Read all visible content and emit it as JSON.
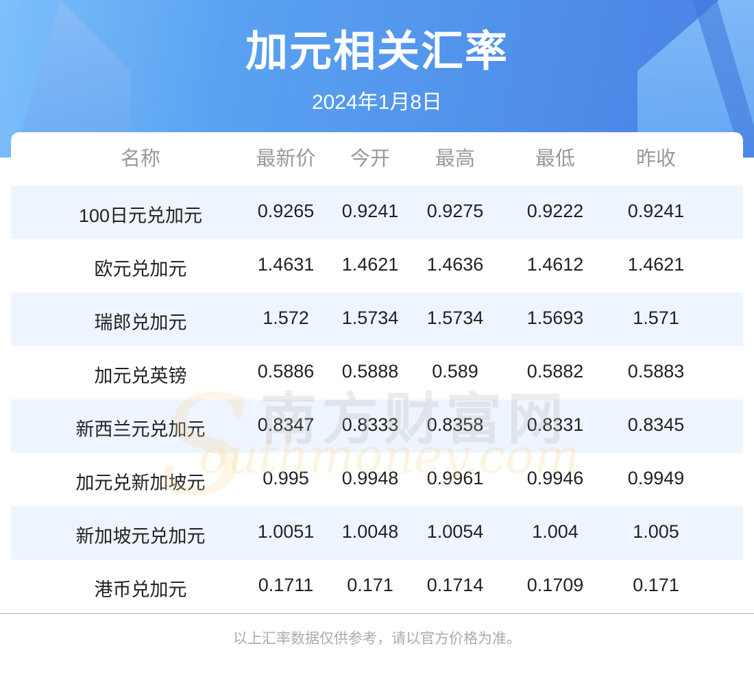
{
  "header": {
    "title": "加元相关汇率",
    "date": "2024年1月8日"
  },
  "table": {
    "columns": [
      "名称",
      "最新价",
      "今开",
      "最高",
      "最低",
      "昨收"
    ],
    "rows": [
      [
        "100日元兑加元",
        "0.9265",
        "0.9241",
        "0.9275",
        "0.9222",
        "0.9241"
      ],
      [
        "欧元兑加元",
        "1.4631",
        "1.4621",
        "1.4636",
        "1.4612",
        "1.4621"
      ],
      [
        "瑞郎兑加元",
        "1.572",
        "1.5734",
        "1.5734",
        "1.5693",
        "1.571"
      ],
      [
        "加元兑英镑",
        "0.5886",
        "0.5888",
        "0.589",
        "0.5882",
        "0.5883"
      ],
      [
        "新西兰元兑加元",
        "0.8347",
        "0.8333",
        "0.8358",
        "0.8331",
        "0.8345"
      ],
      [
        "加元兑新加坡元",
        "0.995",
        "0.9948",
        "0.9961",
        "0.9946",
        "0.9949"
      ],
      [
        "新加坡元兑加元",
        "1.0051",
        "1.0048",
        "1.0054",
        "1.004",
        "1.005"
      ],
      [
        "港币兑加元",
        "0.1711",
        "0.171",
        "0.1714",
        "0.1709",
        "0.171"
      ]
    ]
  },
  "watermark": {
    "cn": "南方财富网",
    "en": "outhmoney.com",
    "s": "S"
  },
  "footer": {
    "note": "以上汇率数据仅供参考，请以官方价格为准。"
  },
  "colors": {
    "banner": "#4f8fea",
    "row_alt": "#eef5fe",
    "header_text": "#999999"
  }
}
